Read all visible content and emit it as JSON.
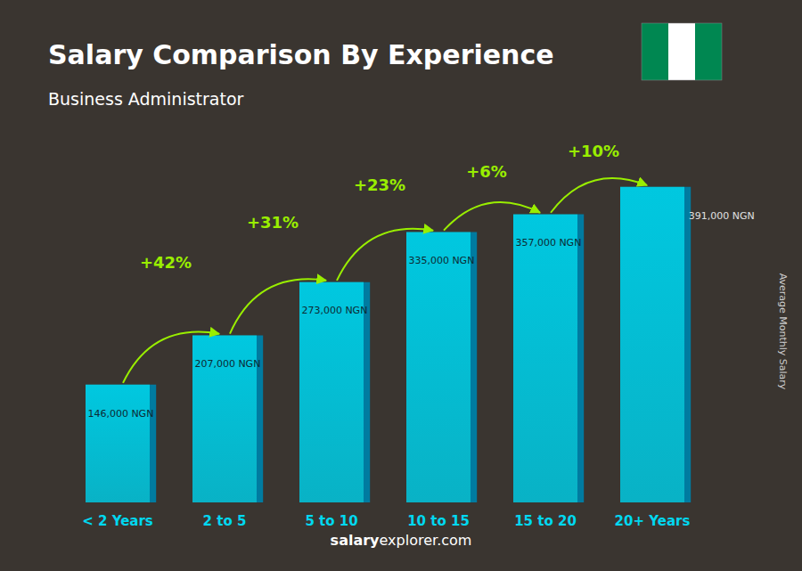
{
  "chart_data": {
    "type": "bar",
    "title": "Salary Comparison By Experience",
    "subtitle": "Business Administrator",
    "ylabel": "Average Monthly Salary",
    "categories": [
      "< 2 Years",
      "2 to 5",
      "5 to 10",
      "10 to 15",
      "15 to 20",
      "20+ Years"
    ],
    "values": [
      146000,
      207000,
      273000,
      335000,
      357000,
      391000
    ],
    "value_labels": [
      "146,000 NGN",
      "207,000 NGN",
      "273,000 NGN",
      "335,000 NGN",
      "357,000 NGN",
      "391,000 NGN"
    ],
    "data_labels": true,
    "annotations": [
      "+42%",
      "+31%",
      "+23%",
      "+6%",
      "+10%"
    ],
    "footer": [
      "salary",
      "explorer.com"
    ],
    "color": "#00c8e0",
    "ylim": [
      0,
      410550
    ],
    "tick_labels": "x",
    "grid": false
  }
}
